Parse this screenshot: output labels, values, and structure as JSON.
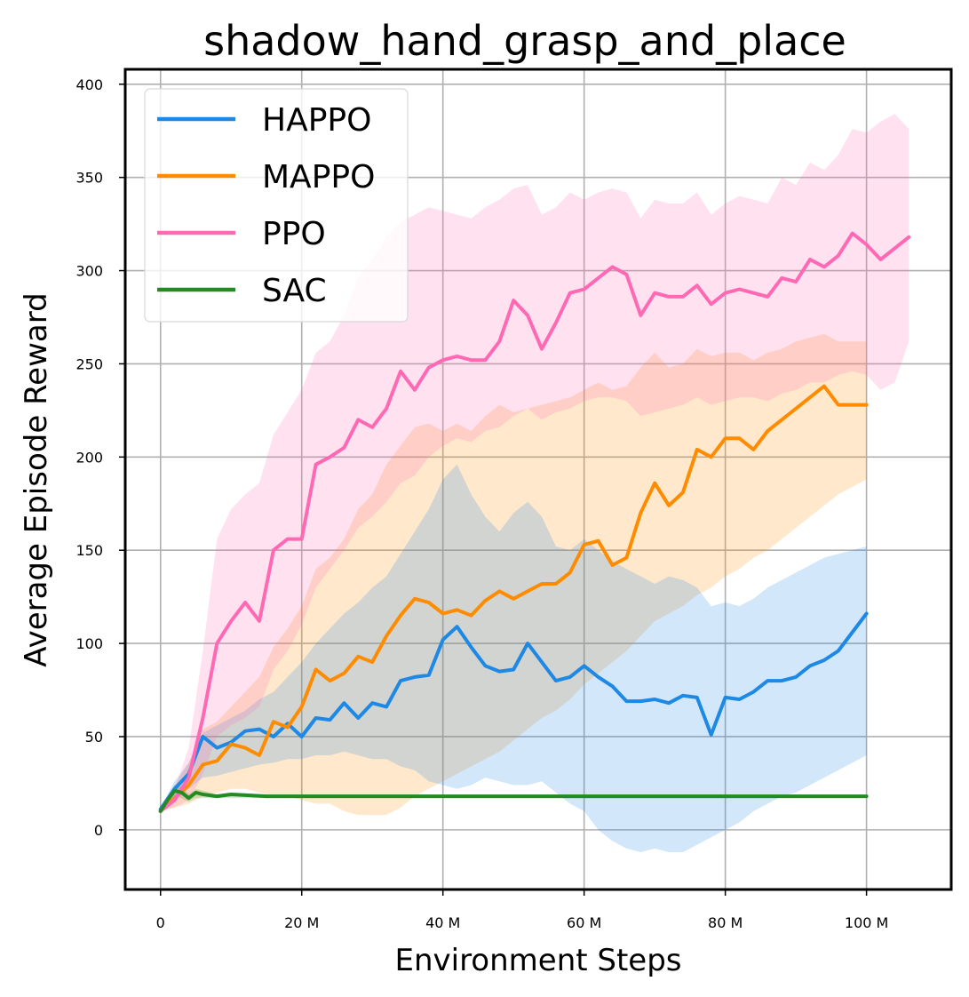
{
  "chart_data": {
    "type": "line",
    "title": "shadow_hand_grasp_and_place",
    "xlabel": "Environment Steps",
    "ylabel": "Average Episode Reward",
    "xlim": [
      -5,
      112
    ],
    "ylim": [
      -32,
      408
    ],
    "x_unit": "M",
    "x_ticks": [
      0,
      20,
      40,
      60,
      80,
      100
    ],
    "x_tick_labels": [
      "0",
      "20 M",
      "40 M",
      "60 M",
      "80 M",
      "100 M"
    ],
    "y_ticks": [
      0,
      50,
      100,
      150,
      200,
      250,
      300,
      350,
      400
    ],
    "y_tick_labels": [
      "0",
      "50",
      "100",
      "150",
      "200",
      "250",
      "300",
      "350",
      "400"
    ],
    "grid": true,
    "legend_position": "top-left",
    "series": [
      {
        "name": "HAPPO",
        "color": "#1E88E5",
        "x": [
          0,
          2,
          4,
          6,
          8,
          10,
          12,
          14,
          16,
          18,
          20,
          22,
          24,
          26,
          28,
          30,
          32,
          34,
          36,
          38,
          40,
          42,
          44,
          46,
          48,
          50,
          52,
          54,
          56,
          58,
          60,
          62,
          64,
          66,
          68,
          70,
          72,
          74,
          76,
          78,
          80,
          82,
          84,
          86,
          88,
          90,
          92,
          94,
          96,
          98,
          100
        ],
        "y": [
          11,
          22,
          30,
          50,
          44,
          47,
          53,
          54,
          50,
          57,
          50,
          60,
          59,
          68,
          60,
          68,
          66,
          80,
          82,
          83,
          102,
          109,
          98,
          88,
          85,
          86,
          100,
          90,
          80,
          82,
          88,
          82,
          77,
          69,
          69,
          70,
          68,
          72,
          71,
          51,
          71,
          70,
          74,
          80,
          80,
          82,
          88,
          91,
          96,
          106,
          116
        ],
        "band_low": [
          10,
          16,
          22,
          28,
          29,
          31,
          33,
          35,
          36,
          38,
          38,
          40,
          40,
          42,
          40,
          38,
          38,
          34,
          32,
          26,
          24,
          22,
          24,
          28,
          26,
          24,
          24,
          26,
          20,
          14,
          10,
          0,
          -6,
          -10,
          -12,
          -10,
          -12,
          -12,
          -8,
          -4,
          0,
          4,
          10,
          14,
          18,
          20,
          24,
          28,
          32,
          36,
          40
        ],
        "band_high": [
          12,
          26,
          36,
          52,
          56,
          60,
          64,
          70,
          74,
          82,
          90,
          100,
          108,
          116,
          122,
          130,
          136,
          148,
          160,
          172,
          188,
          196,
          180,
          168,
          160,
          170,
          176,
          168,
          152,
          150,
          156,
          150,
          144,
          140,
          136,
          132,
          136,
          134,
          130,
          120,
          122,
          120,
          124,
          130,
          134,
          138,
          142,
          146,
          148,
          150,
          152
        ]
      },
      {
        "name": "MAPPO",
        "color": "#FF8C00",
        "x": [
          0,
          2,
          4,
          6,
          8,
          10,
          12,
          14,
          16,
          18,
          20,
          22,
          24,
          26,
          28,
          30,
          32,
          34,
          36,
          38,
          40,
          42,
          44,
          46,
          48,
          50,
          52,
          54,
          56,
          58,
          60,
          62,
          64,
          66,
          68,
          70,
          72,
          74,
          76,
          78,
          80,
          82,
          84,
          86,
          88,
          90,
          92,
          94,
          96,
          98,
          100
        ],
        "y": [
          10,
          17,
          24,
          35,
          37,
          46,
          44,
          40,
          58,
          55,
          66,
          86,
          80,
          84,
          93,
          90,
          104,
          115,
          124,
          122,
          116,
          118,
          115,
          123,
          128,
          124,
          128,
          132,
          132,
          138,
          153,
          155,
          142,
          146,
          170,
          186,
          174,
          181,
          204,
          200,
          210,
          210,
          204,
          214,
          220,
          226,
          232,
          238,
          228,
          228,
          228
        ],
        "band_low": [
          10,
          12,
          14,
          18,
          20,
          22,
          22,
          20,
          18,
          18,
          16,
          14,
          14,
          10,
          8,
          8,
          8,
          12,
          18,
          22,
          26,
          30,
          34,
          38,
          42,
          48,
          54,
          60,
          64,
          70,
          78,
          84,
          90,
          96,
          104,
          112,
          116,
          120,
          126,
          130,
          136,
          140,
          146,
          150,
          156,
          162,
          168,
          174,
          180,
          184,
          188
        ],
        "band_high": [
          12,
          24,
          36,
          54,
          58,
          66,
          74,
          82,
          98,
          108,
          120,
          140,
          146,
          156,
          172,
          180,
          196,
          206,
          216,
          218,
          214,
          218,
          214,
          222,
          228,
          224,
          226,
          228,
          230,
          232,
          236,
          240,
          236,
          238,
          248,
          256,
          248,
          250,
          258,
          254,
          256,
          256,
          252,
          256,
          258,
          262,
          264,
          266,
          262,
          262,
          262
        ]
      },
      {
        "name": "PPO",
        "color": "#FF69B4",
        "x": [
          0,
          2,
          4,
          6,
          8,
          10,
          12,
          14,
          16,
          18,
          20,
          22,
          24,
          26,
          28,
          30,
          32,
          34,
          36,
          38,
          40,
          42,
          44,
          46,
          48,
          50,
          52,
          54,
          56,
          58,
          60,
          62,
          64,
          66,
          68,
          70,
          72,
          74,
          76,
          78,
          80,
          82,
          84,
          86,
          88,
          90,
          92,
          94,
          96,
          98,
          100,
          102,
          104,
          106
        ],
        "y": [
          10,
          16,
          28,
          60,
          100,
          112,
          122,
          112,
          150,
          156,
          156,
          196,
          200,
          205,
          220,
          216,
          226,
          246,
          236,
          248,
          252,
          254,
          252,
          252,
          262,
          284,
          276,
          258,
          272,
          288,
          290,
          296,
          302,
          298,
          276,
          288,
          286,
          286,
          292,
          282,
          288,
          290,
          288,
          286,
          296,
          294,
          306,
          302,
          308,
          320,
          314,
          306,
          312,
          318
        ],
        "band_low": [
          10,
          12,
          16,
          30,
          50,
          56,
          60,
          66,
          86,
          96,
          110,
          130,
          140,
          150,
          162,
          168,
          176,
          186,
          190,
          200,
          206,
          210,
          208,
          214,
          216,
          222,
          226,
          220,
          224,
          226,
          230,
          232,
          232,
          230,
          222,
          224,
          226,
          228,
          232,
          228,
          230,
          232,
          232,
          230,
          234,
          236,
          240,
          240,
          244,
          246,
          244,
          236,
          240,
          262
        ],
        "band_high": [
          12,
          22,
          44,
          96,
          156,
          172,
          180,
          186,
          212,
          224,
          236,
          256,
          262,
          276,
          296,
          306,
          318,
          326,
          330,
          334,
          332,
          330,
          328,
          334,
          338,
          344,
          346,
          330,
          334,
          342,
          338,
          342,
          344,
          342,
          328,
          338,
          336,
          336,
          342,
          330,
          336,
          340,
          338,
          336,
          350,
          346,
          358,
          354,
          362,
          376,
          374,
          380,
          384,
          376
        ]
      },
      {
        "name": "SAC",
        "color": "#228B22",
        "x": [
          0,
          1,
          2,
          3,
          4,
          5,
          6,
          8,
          10,
          15,
          20,
          30,
          40,
          50,
          60,
          70,
          80,
          90,
          100
        ],
        "y": [
          10,
          16,
          21,
          20,
          17,
          20,
          19,
          18,
          19,
          18,
          18,
          18,
          18,
          18,
          18,
          18,
          18,
          18,
          18
        ],
        "band_low": [
          9,
          14,
          18,
          17,
          15,
          17,
          17,
          17,
          17,
          17,
          17,
          17,
          17,
          17,
          17,
          17,
          17,
          17,
          17
        ],
        "band_high": [
          11,
          18,
          24,
          23,
          19,
          22,
          21,
          19,
          20,
          19,
          19,
          19,
          19,
          19,
          19,
          19,
          19,
          19,
          19
        ]
      }
    ]
  }
}
